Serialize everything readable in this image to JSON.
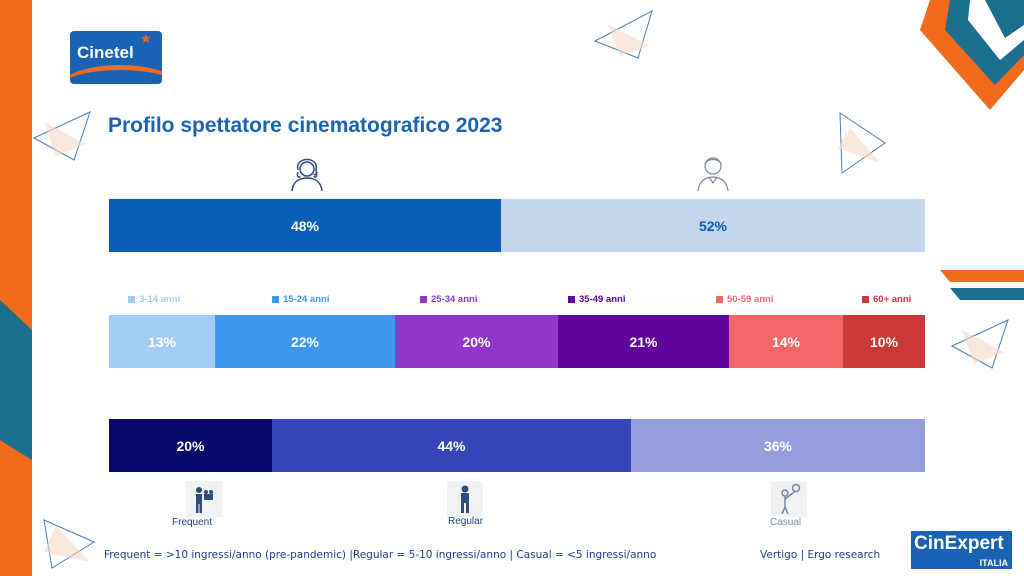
{
  "brand": {
    "logo_left_text": "Cinetel",
    "logo_right_text": "CinExpert",
    "logo_right_sub": "ITALIA"
  },
  "title": "Profilo spettatore cinematografico 2023",
  "colors": {
    "orange": "#f26a1b",
    "teal": "#1d6f8f",
    "blue_dark": "#1a63b4",
    "text_blue": "#1a3f8a"
  },
  "icons": {
    "female": "woman-icon",
    "male": "man-icon",
    "frequent": "film-camera-person-icon",
    "regular": "standing-person-icon",
    "casual": "person-with-balloon-icon"
  },
  "chart_data": [
    {
      "type": "bar",
      "orientation": "horizontal-stacked-100",
      "series": [
        {
          "values": [
            48
          ],
          "color": "#0a5eb5",
          "text_color": "#ffffff",
          "icon": "woman-icon"
        },
        {
          "values": [
            52
          ],
          "color": "#c3d6ec",
          "text_color": "#0a5eb5",
          "icon": "man-icon"
        }
      ],
      "data_labels": [
        "48%",
        "52%"
      ]
    },
    {
      "type": "bar",
      "orientation": "horizontal-stacked-100",
      "legend": "top",
      "series": [
        {
          "name": "3-14 anni",
          "values": [
            13
          ],
          "color": "#a3cdf6",
          "text_color": "#ffffff",
          "legend_color": "#a3cdf6"
        },
        {
          "name": "15-24 anni",
          "values": [
            22
          ],
          "color": "#3d97ee",
          "text_color": "#ffffff",
          "legend_color": "#3d97ee"
        },
        {
          "name": "25-34 anni",
          "values": [
            20
          ],
          "color": "#9336cc",
          "text_color": "#ffffff",
          "legend_color": "#9336cc"
        },
        {
          "name": "35-49 anni",
          "values": [
            21
          ],
          "color": "#61069d",
          "text_color": "#ffffff",
          "legend_color": "#61069d"
        },
        {
          "name": "50-59 anni",
          "values": [
            14
          ],
          "color": "#f16767",
          "text_color": "#ffffff",
          "legend_color": "#f16767"
        },
        {
          "name": "60+ anni",
          "values": [
            10
          ],
          "color": "#cc3737",
          "text_color": "#ffffff",
          "legend_color": "#cc3737"
        }
      ],
      "data_labels": [
        "13%",
        "22%",
        "20%",
        "21%",
        "14%",
        "10%"
      ]
    },
    {
      "type": "bar",
      "orientation": "horizontal-stacked-100",
      "series": [
        {
          "name": "Frequent",
          "values": [
            20
          ],
          "color": "#07076a",
          "text_color": "#ffffff",
          "icon": "film-camera-person-icon"
        },
        {
          "name": "Regular",
          "values": [
            44
          ],
          "color": "#3645b8",
          "text_color": "#ffffff",
          "icon": "standing-person-icon"
        },
        {
          "name": "Casual",
          "values": [
            36
          ],
          "color": "#969ddc",
          "text_color": "#ffffff",
          "icon": "person-with-balloon-icon"
        }
      ],
      "data_labels": [
        "20%",
        "44%",
        "36%"
      ]
    }
  ],
  "footnote": "Frequent = >10 ingressi/anno (pre-pandemic) |Regular = 5-10 ingressi/anno | Casual = <5 ingressi/anno",
  "source": "Vertigo | Ergo research"
}
